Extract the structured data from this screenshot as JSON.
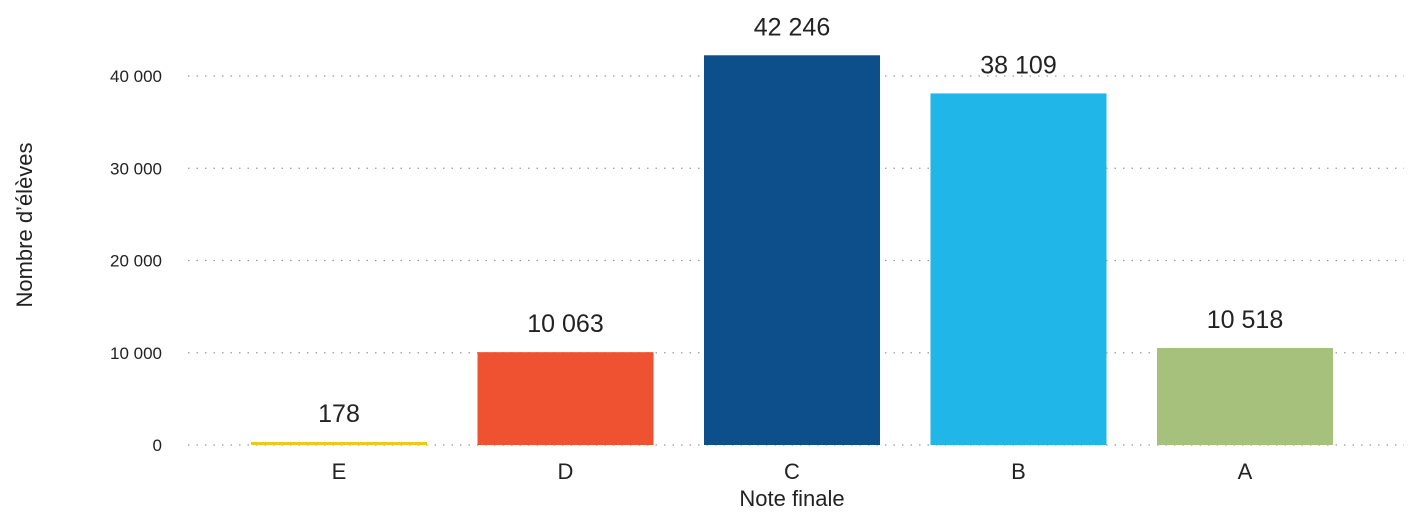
{
  "chart_data": {
    "type": "bar",
    "title": "",
    "xlabel": "Note finale",
    "ylabel": "Nombre d’élèves",
    "categories": [
      "E",
      "D",
      "C",
      "B",
      "A"
    ],
    "values": [
      178,
      10063,
      42246,
      38109,
      10518
    ],
    "value_labels": [
      "178",
      "10 063",
      "42 246",
      "38 109",
      "10 518"
    ],
    "colors": [
      "#f2c71c",
      "#ef5230",
      "#0d4f8b",
      "#20b6e8",
      "#a5c17c"
    ],
    "ylim": [
      0,
      40000
    ],
    "yticks": [
      0,
      10000,
      20000,
      30000,
      40000
    ],
    "ytick_labels": [
      "0",
      "10 000",
      "20 000",
      "30 000",
      "40 000"
    ],
    "grid": true,
    "legend": "none"
  }
}
